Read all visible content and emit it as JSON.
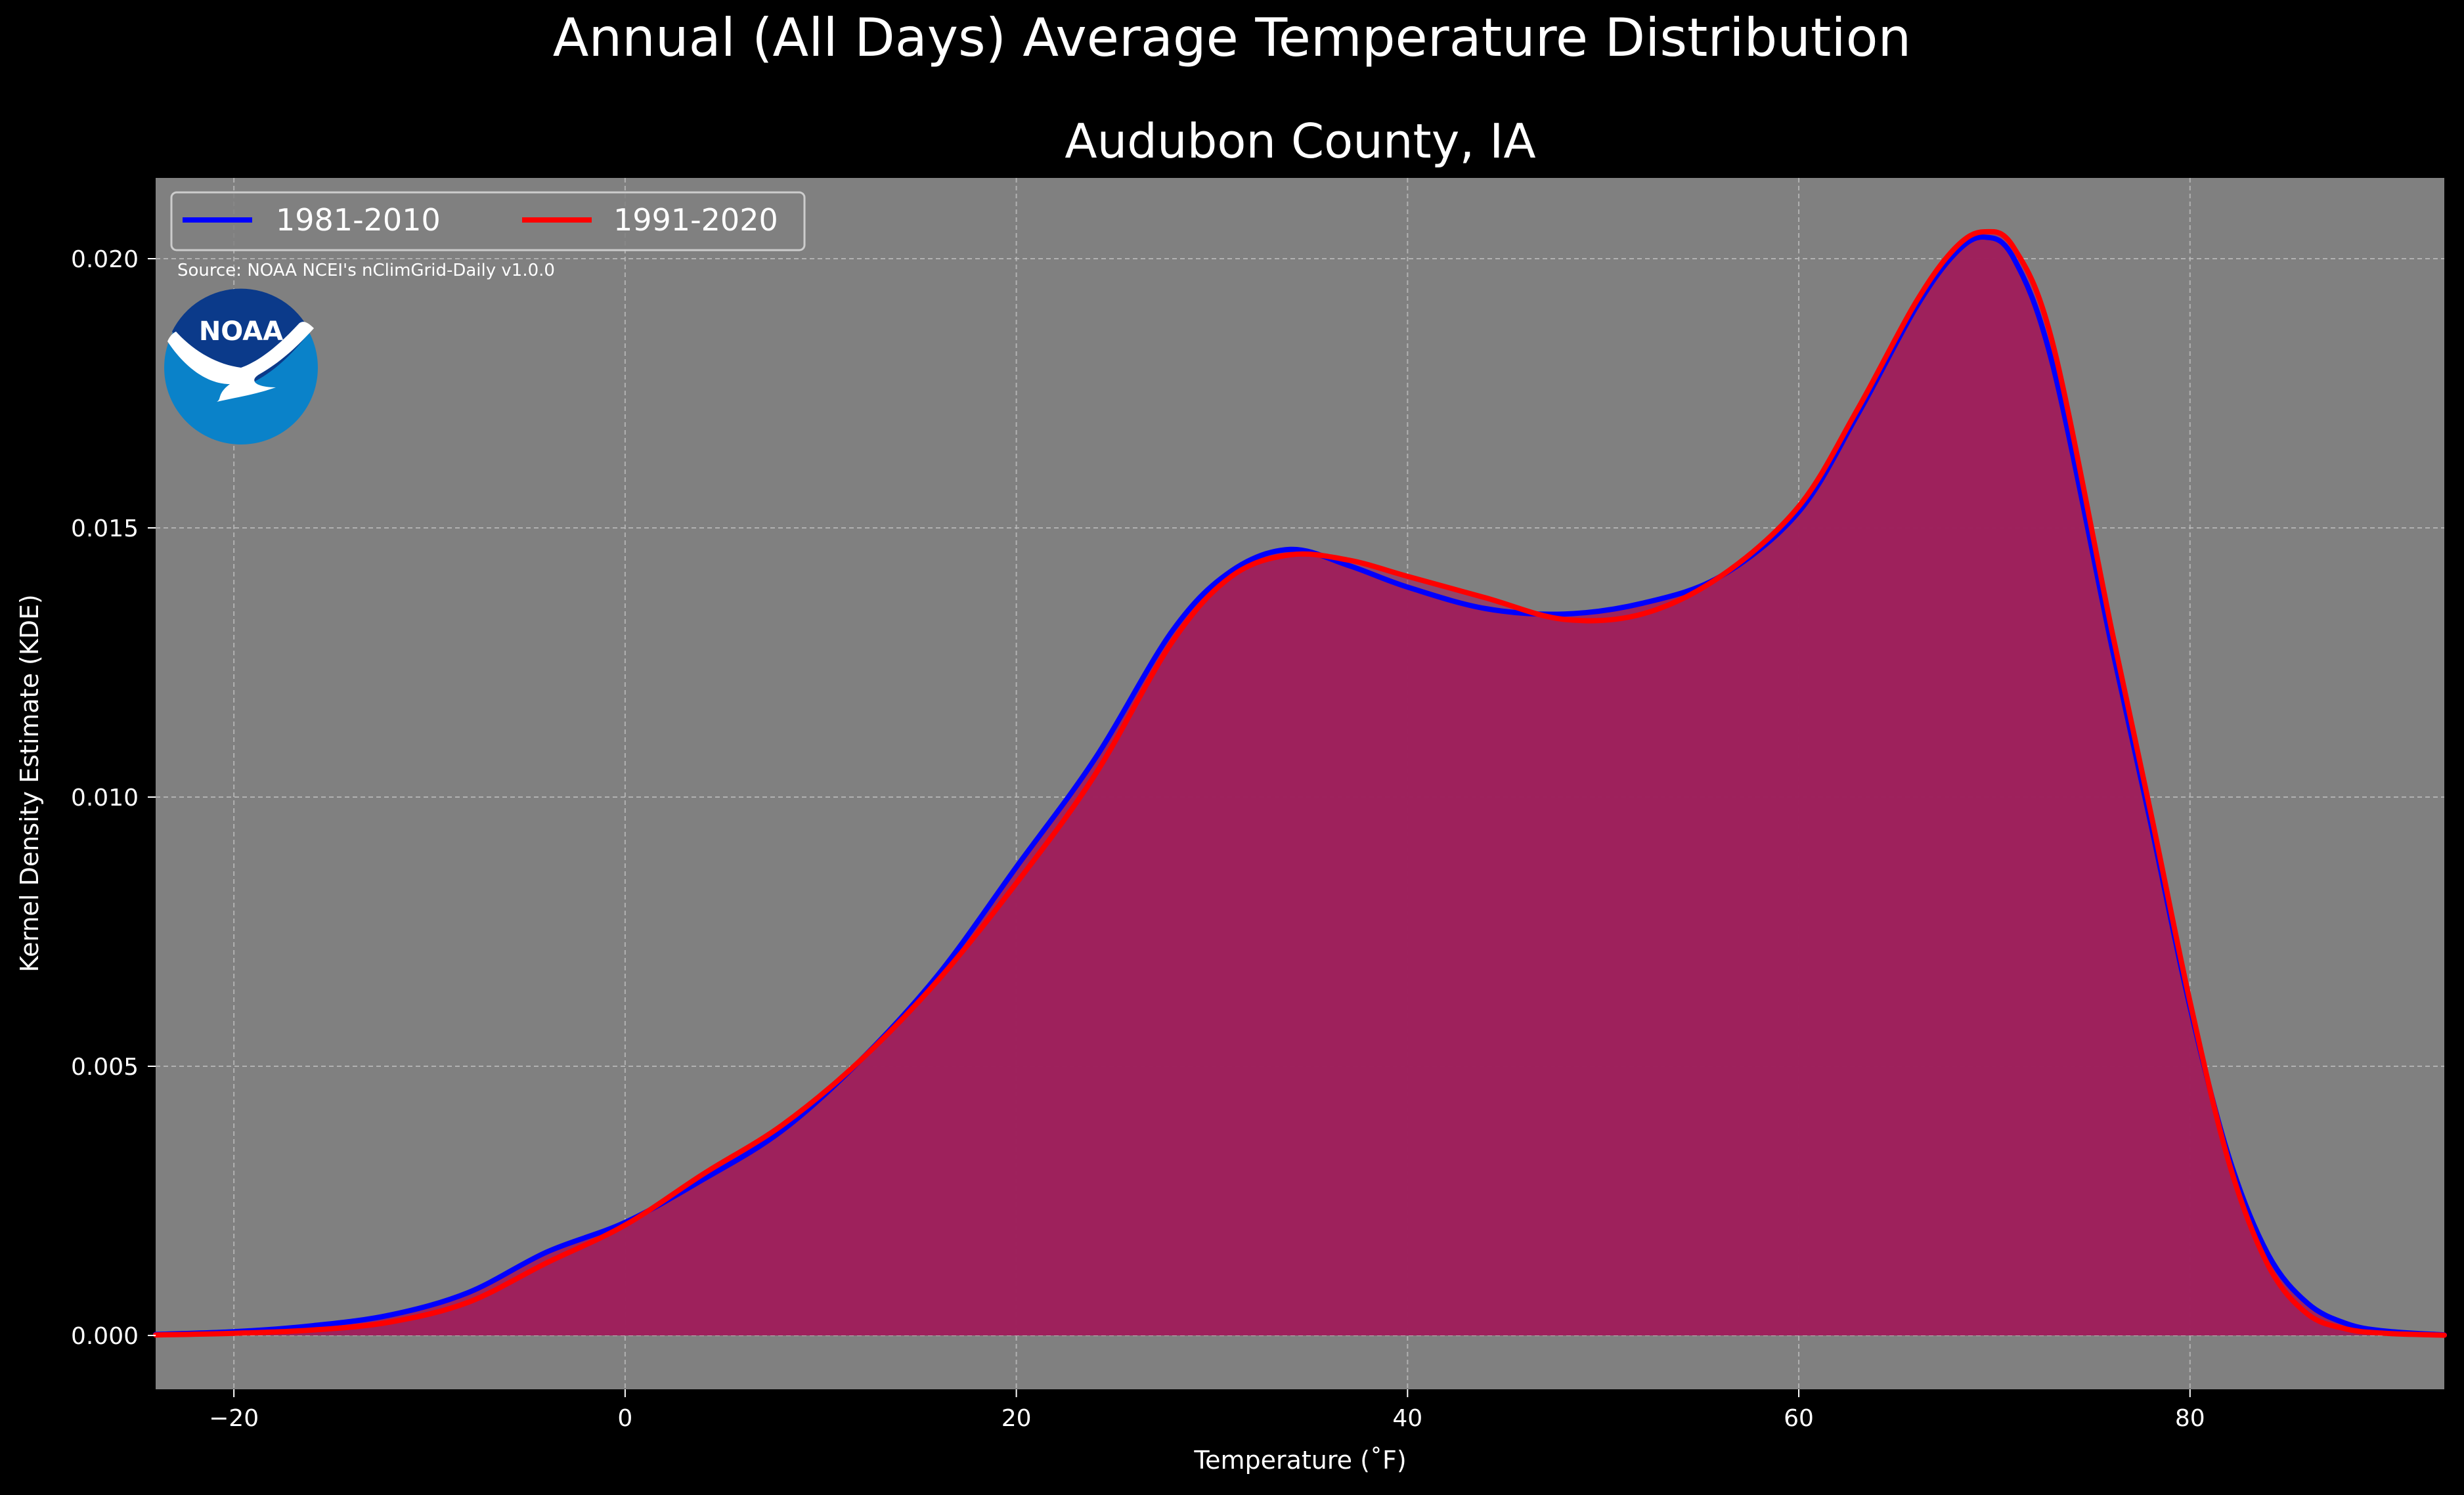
{
  "figure": {
    "suptitle": "Annual (All Days) Average Temperature Distribution",
    "source": "Source: NOAA NCEI's nClimGrid-Daily v1.0.0",
    "logo_text": "NOAA"
  },
  "chart_data": {
    "type": "area",
    "title": "Audubon County, IA",
    "xlabel": "Temperature (˚F)",
    "ylabel": "Kernel Density Estimate (KDE)",
    "xlim": [
      -24,
      93
    ],
    "ylim": [
      -0.001,
      0.0215
    ],
    "xticks": [
      -20,
      0,
      20,
      40,
      60,
      80
    ],
    "xtick_labels": [
      "−20",
      "0",
      "20",
      "40",
      "60",
      "80"
    ],
    "yticks": [
      0.0,
      0.005,
      0.01,
      0.015,
      0.02
    ],
    "ytick_labels": [
      "0.000",
      "0.005",
      "0.010",
      "0.015",
      "0.020"
    ],
    "grid": true,
    "legend_position": "top-left",
    "background_color": "#808080",
    "fill_color": "#9e1f5c",
    "series": [
      {
        "name": "1981-2010",
        "color": "#0000ff",
        "x": [
          -24,
          -20,
          -16,
          -12,
          -8,
          -4,
          0,
          4,
          8,
          12,
          16,
          20,
          24,
          28,
          31,
          34,
          37,
          40,
          44,
          48,
          52,
          56,
          60,
          63,
          66,
          68,
          69.5,
          71,
          73,
          76,
          78,
          80,
          82,
          84,
          86,
          88,
          90,
          93
        ],
        "y": [
          2e-05,
          7e-05,
          0.00018,
          0.00038,
          0.0008,
          0.00155,
          0.0021,
          0.0029,
          0.0038,
          0.0051,
          0.0067,
          0.0087,
          0.0107,
          0.0131,
          0.0142,
          0.0146,
          0.0143,
          0.0139,
          0.0135,
          0.0134,
          0.0136,
          0.0141,
          0.0153,
          0.0171,
          0.0191,
          0.0201,
          0.0204,
          0.02,
          0.018,
          0.0128,
          0.0095,
          0.0061,
          0.0033,
          0.0015,
          0.0006,
          0.00022,
          8e-05,
          1e-05
        ]
      },
      {
        "name": "1991-2020",
        "color": "#ff0000",
        "x": [
          -24,
          -20,
          -16,
          -12,
          -8,
          -4,
          0,
          4,
          8,
          12,
          16,
          20,
          24,
          28,
          31,
          34,
          37,
          40,
          44,
          48,
          52,
          56,
          60,
          63,
          66,
          68,
          69.5,
          71,
          73,
          76,
          78,
          80,
          82,
          84,
          86,
          88,
          90,
          93
        ],
        "y": [
          1e-05,
          4e-05,
          0.0001,
          0.00025,
          0.00062,
          0.00135,
          0.00205,
          0.003,
          0.0039,
          0.0051,
          0.0066,
          0.0084,
          0.0104,
          0.0129,
          0.0141,
          0.0145,
          0.0144,
          0.0141,
          0.0137,
          0.0133,
          0.0134,
          0.0141,
          0.0154,
          0.0172,
          0.0192,
          0.0202,
          0.0205,
          0.0202,
          0.0184,
          0.0131,
          0.0097,
          0.0062,
          0.0032,
          0.0013,
          0.0004,
          0.00012,
          4e-05,
          5e-06
        ]
      }
    ]
  }
}
